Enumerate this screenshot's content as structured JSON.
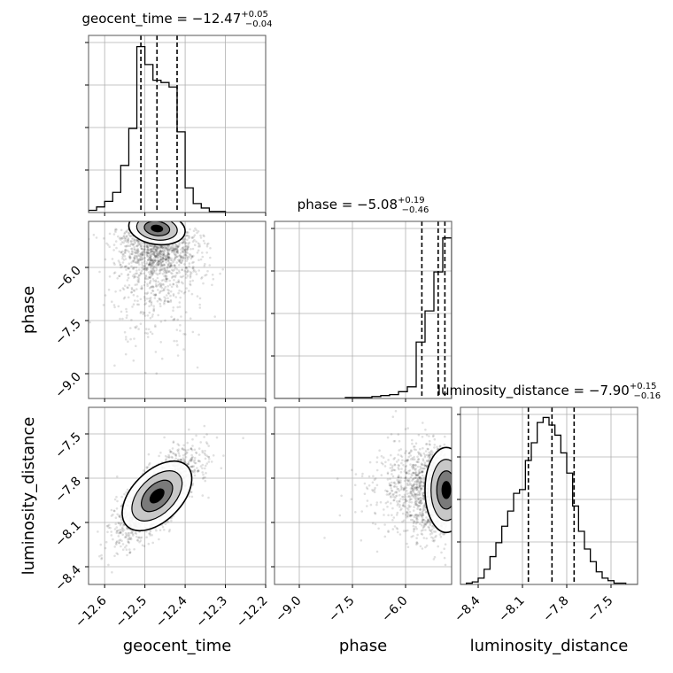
{
  "chart_data": {
    "type": "corner",
    "parameters": [
      "geocent_time",
      "phase",
      "luminosity_distance"
    ],
    "grid": true,
    "titles": [
      {
        "name": "geocent_time",
        "median": "−12.47",
        "plus": "+0.05",
        "minus": "−0.04"
      },
      {
        "name": "phase",
        "median": "−5.08",
        "plus": "+0.19",
        "minus": "−0.46"
      },
      {
        "name": "luminosity_distance",
        "median": "−7.90",
        "plus": "+0.15",
        "minus": "−0.16"
      }
    ],
    "axes": {
      "geocent_time": {
        "range": [
          -12.64,
          -12.2
        ],
        "ticks": [
          -12.6,
          -12.5,
          -12.4,
          -12.3,
          -12.2
        ],
        "tick_labels": [
          "−12.6",
          "−12.5",
          "−12.4",
          "−12.3",
          "−12.2"
        ]
      },
      "phase": {
        "range": [
          -9.7,
          -4.7
        ],
        "ticks": [
          -9.0,
          -7.5,
          -6.0
        ],
        "tick_labels": [
          "−9.0",
          "−7.5",
          "−6.0"
        ]
      },
      "luminosity_distance": {
        "range": [
          -8.52,
          -7.32
        ],
        "ticks": [
          -8.4,
          -8.1,
          -7.8,
          -7.5
        ],
        "tick_labels": [
          "−8.4",
          "−8.1",
          "−7.8",
          "−7.5"
        ]
      }
    },
    "histograms": {
      "geocent_time": {
        "edges": [
          -12.64,
          -12.62,
          -12.6,
          -12.58,
          -12.56,
          -12.54,
          -12.52,
          -12.5,
          -12.48,
          -12.46,
          -12.44,
          -12.42,
          -12.4,
          -12.38,
          -12.36,
          -12.34,
          -12.32,
          -12.3,
          -12.28,
          -12.26,
          -12.24,
          -12.22,
          -12.2
        ],
        "counts": [
          2,
          5,
          10,
          18,
          42,
          75,
          148,
          132,
          118,
          116,
          112,
          72,
          22,
          8,
          4,
          1,
          1,
          0,
          0,
          0,
          0,
          0
        ],
        "ymax": 158,
        "quantiles": [
          -12.51,
          -12.47,
          -12.42
        ]
      },
      "phase": {
        "edges": [
          -9.7,
          -9.45,
          -9.2,
          -8.95,
          -8.7,
          -8.45,
          -8.2,
          -7.95,
          -7.7,
          -7.45,
          -7.2,
          -6.95,
          -6.7,
          -6.45,
          -6.2,
          -5.95,
          -5.7,
          -5.45,
          -5.2,
          -4.95,
          -4.7
        ],
        "counts": [
          0,
          0,
          0,
          0,
          0,
          0,
          0,
          0,
          1,
          1,
          1,
          2,
          3,
          4,
          7,
          12,
          58,
          90,
          130,
          165
        ],
        "ymax": 182,
        "quantiles": [
          -5.54,
          -5.08,
          -4.89
        ]
      },
      "luminosity_distance": {
        "edges": [
          -8.52,
          -8.48,
          -8.44,
          -8.4,
          -8.36,
          -8.32,
          -8.28,
          -8.24,
          -8.2,
          -8.16,
          -8.12,
          -8.08,
          -8.04,
          -8.0,
          -7.96,
          -7.92,
          -7.88,
          -7.84,
          -7.8,
          -7.76,
          -7.72,
          -7.68,
          -7.64,
          -7.6,
          -7.56,
          -7.52,
          -7.48,
          -7.44,
          -7.4,
          -7.36,
          -7.32
        ],
        "counts": [
          0,
          1,
          2,
          5,
          12,
          22,
          33,
          46,
          58,
          72,
          75,
          98,
          112,
          128,
          132,
          126,
          118,
          104,
          88,
          62,
          42,
          28,
          18,
          10,
          5,
          3,
          1,
          1,
          0,
          0
        ],
        "ymax": 140,
        "quantiles": [
          -8.06,
          -7.9,
          -7.75
        ]
      }
    },
    "density_peaks": {
      "phase_vs_geocent_time": {
        "x": -12.47,
        "y": -4.9
      },
      "luminosity_distance_vs_geocent_time": {
        "x": -12.47,
        "y": -7.92
      },
      "luminosity_distance_vs_phase": {
        "x": -4.85,
        "y": -7.88
      }
    }
  }
}
